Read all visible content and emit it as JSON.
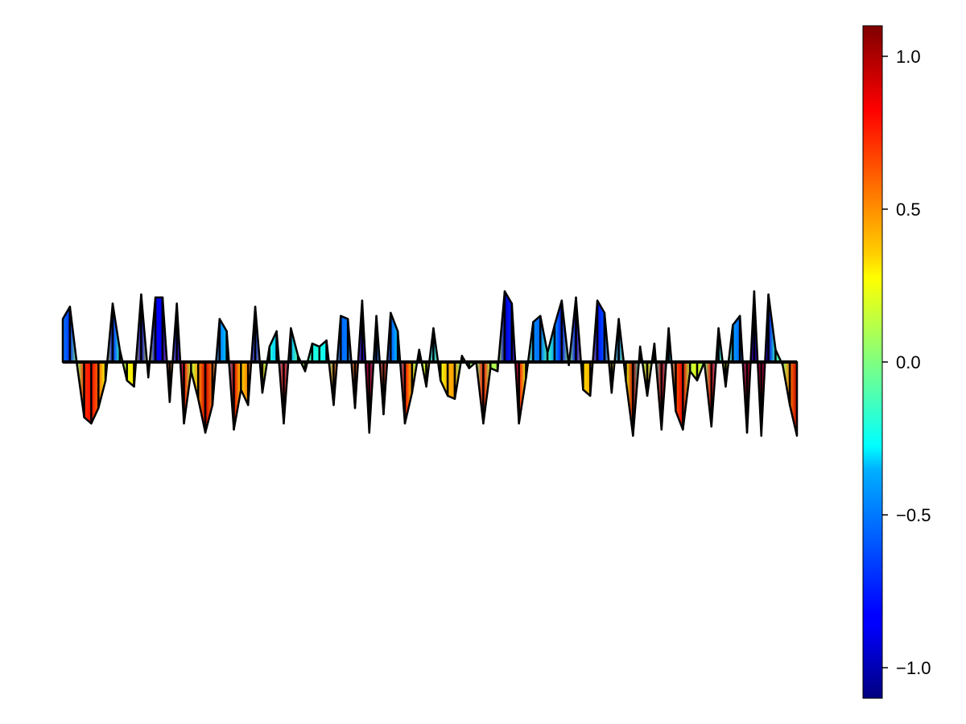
{
  "chart_data": {
    "type": "area",
    "title": "",
    "xlabel": "",
    "ylabel": "",
    "axes_visible": false,
    "grid": false,
    "fill": "gradient colored by -y value (jet colormap), black outline, drawn to y = 0 baseline",
    "y": [
      0.14,
      0.18,
      -0.01,
      -0.18,
      -0.2,
      -0.15,
      -0.06,
      0.19,
      0.04,
      -0.06,
      -0.08,
      0.22,
      -0.05,
      0.21,
      0.21,
      -0.13,
      0.19,
      -0.2,
      -0.03,
      -0.12,
      -0.23,
      -0.14,
      0.14,
      0.1,
      -0.22,
      -0.09,
      -0.14,
      0.18,
      -0.1,
      0.05,
      0.1,
      -0.2,
      0.11,
      0.02,
      -0.03,
      0.06,
      0.05,
      0.07,
      -0.14,
      0.15,
      0.14,
      -0.15,
      0.2,
      -0.23,
      0.15,
      -0.17,
      0.16,
      0.1,
      -0.2,
      -0.1,
      0.04,
      -0.08,
      0.11,
      -0.06,
      -0.11,
      -0.12,
      0.02,
      -0.02,
      0.0,
      -0.2,
      -0.02,
      -0.03,
      0.23,
      0.19,
      -0.2,
      -0.05,
      0.13,
      0.15,
      0.03,
      0.12,
      0.2,
      -0.01,
      0.21,
      -0.09,
      -0.11,
      0.2,
      0.16,
      -0.1,
      0.14,
      -0.06,
      -0.24,
      0.05,
      -0.11,
      0.06,
      -0.22,
      0.11,
      -0.16,
      -0.22,
      -0.03,
      -0.06,
      0.0,
      -0.21,
      0.11,
      -0.08,
      0.12,
      0.15,
      -0.23,
      0.23,
      -0.24,
      0.22,
      0.04,
      -0.01,
      -0.14,
      -0.24
    ],
    "ylim": [
      -0.6,
      0.6
    ],
    "colorbar": {
      "colormap": "jet",
      "range": [
        -1.1,
        1.1
      ],
      "ticks": [
        -1.0,
        -0.5,
        0.0,
        0.5,
        1.0
      ],
      "tick_labels": [
        "−1.0",
        "−0.5",
        "0.0",
        "0.5",
        "1.0"
      ]
    }
  }
}
